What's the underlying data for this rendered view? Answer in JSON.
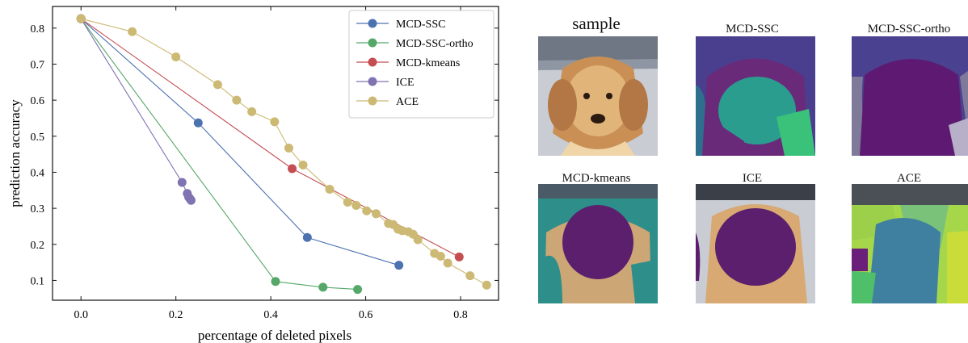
{
  "chart_data": {
    "type": "line",
    "xlabel": "percentage of deleted pixels",
    "ylabel": "prediction accuracy",
    "xlim": [
      -0.06,
      0.88
    ],
    "ylim": [
      0.045,
      0.86
    ],
    "xticks": [
      0.0,
      0.2,
      0.4,
      0.6,
      0.8
    ],
    "xtick_labels": [
      "0.0",
      "0.2",
      "0.4",
      "0.6",
      "0.8"
    ],
    "yticks": [
      0.1,
      0.2,
      0.3,
      0.4,
      0.5,
      0.6,
      0.7,
      0.8
    ],
    "ytick_labels": [
      "0.1",
      "0.2",
      "0.3",
      "0.4",
      "0.5",
      "0.6",
      "0.7",
      "0.8"
    ],
    "grid": false,
    "legend_position": "top-right",
    "series": [
      {
        "name": "MCD-SSC",
        "color": "#4c72b0",
        "x": [
          0.0,
          0.247,
          0.477,
          0.67
        ],
        "y": [
          0.826,
          0.537,
          0.219,
          0.142
        ]
      },
      {
        "name": "MCD-SSC-ortho",
        "color": "#55a868",
        "x": [
          0.0,
          0.41,
          0.51,
          0.583
        ],
        "y": [
          0.826,
          0.097,
          0.081,
          0.075
        ]
      },
      {
        "name": "MCD-kmeans",
        "color": "#c44e52",
        "x": [
          0.0,
          0.445,
          0.797
        ],
        "y": [
          0.826,
          0.41,
          0.165
        ]
      },
      {
        "name": "ICE",
        "color": "#8172b2",
        "x": [
          0.0,
          0.213,
          0.224,
          0.227,
          0.23,
          0.232
        ],
        "y": [
          0.826,
          0.372,
          0.341,
          0.331,
          0.326,
          0.322
        ]
      },
      {
        "name": "ACE",
        "color": "#ccb974",
        "x": [
          0.0,
          0.108,
          0.2,
          0.288,
          0.328,
          0.36,
          0.408,
          0.438,
          0.468,
          0.524,
          0.562,
          0.58,
          0.602,
          0.622,
          0.648,
          0.658,
          0.668,
          0.677,
          0.69,
          0.7,
          0.71,
          0.745,
          0.758,
          0.773,
          0.82,
          0.855
        ],
        "y": [
          0.826,
          0.79,
          0.72,
          0.643,
          0.6,
          0.568,
          0.54,
          0.467,
          0.42,
          0.353,
          0.317,
          0.308,
          0.293,
          0.285,
          0.258,
          0.255,
          0.242,
          0.238,
          0.235,
          0.228,
          0.213,
          0.175,
          0.167,
          0.148,
          0.113,
          0.087
        ]
      }
    ]
  },
  "panels": {
    "sample": "sample",
    "mcd_ssc": "MCD-SSC",
    "mcd_ssc_ortho": "MCD-SSC-ortho",
    "mcd_kmeans": "MCD-kmeans",
    "ice": "ICE",
    "ace": "ACE"
  }
}
